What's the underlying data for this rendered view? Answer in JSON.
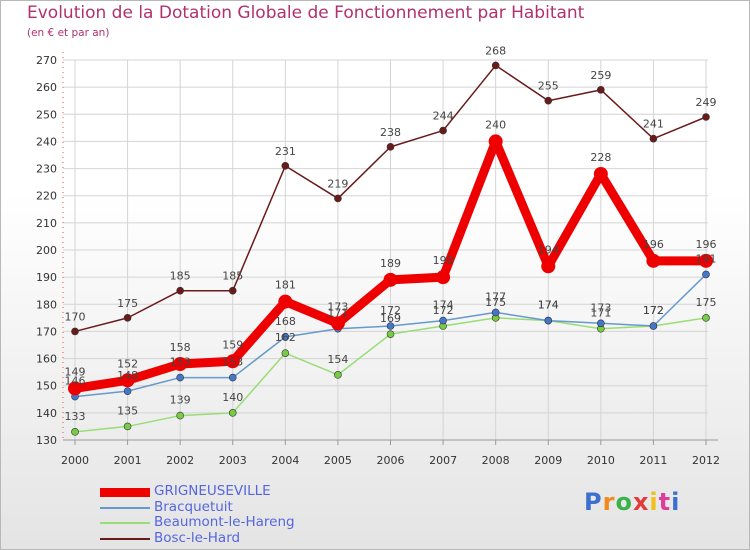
{
  "title": "Evolution de la Dotation Globale de Fonctionnement par Habitant",
  "subtitle": "(en € et par an)",
  "logo": {
    "letters": [
      "P",
      "r",
      "o",
      "x",
      "i",
      "t",
      "i"
    ],
    "colors": [
      "#3b6fd0",
      "#f08a1c",
      "#3bb34a",
      "#e03c3c",
      "#f0c01c",
      "#e03c9c",
      "#3b6fd0"
    ]
  },
  "chart_data": {
    "type": "line",
    "title": "Evolution de la Dotation Globale de Fonctionnement par Habitant",
    "ylabel": "(en € et par an)",
    "x": [
      "2000",
      "2001",
      "2002",
      "2003",
      "2004",
      "2005",
      "2006",
      "2007",
      "2008",
      "2009",
      "2010",
      "2011",
      "2012"
    ],
    "ylim": [
      130,
      270
    ],
    "yticks": [
      "130",
      "140",
      "150",
      "160",
      "170",
      "180",
      "190",
      "200",
      "210",
      "220",
      "230",
      "240",
      "250",
      "260",
      "270"
    ],
    "series": [
      {
        "name": "Bosc-le-Hard",
        "color": "#6b1a1a",
        "marker": "#6b1a1a",
        "values": [
          170,
          175,
          185,
          185,
          231,
          219,
          238,
          244,
          268,
          255,
          259,
          241,
          249
        ],
        "labels": [
          "170",
          "175",
          "185",
          "185",
          "231",
          "219",
          "238",
          "244",
          "268",
          "255",
          "259",
          "241",
          "249"
        ]
      },
      {
        "name": "Beaumont-le-Hareng",
        "color": "#99dd77",
        "marker": "#77cc44",
        "values": [
          133,
          135,
          139,
          140,
          162,
          154,
          169,
          172,
          175,
          174,
          171,
          172,
          175
        ],
        "labels": [
          "133",
          "135",
          "139",
          "140",
          "162",
          "154",
          "169",
          "172",
          "175",
          "174",
          "171",
          "172",
          "175"
        ]
      },
      {
        "name": "Bracquetuit",
        "color": "#6699cc",
        "marker": "#4477cc",
        "values": [
          146,
          148,
          153,
          153,
          168,
          171,
          172,
          174,
          177,
          174,
          173,
          172,
          191
        ],
        "labels": [
          "146",
          "148",
          "153",
          "153",
          "168",
          "171",
          "172",
          "174",
          "177",
          "174",
          "173",
          "172",
          "191"
        ]
      },
      {
        "name": "GRIGNEUSEVILLE",
        "color": "#ee0000",
        "marker": "#ee0000",
        "values": [
          149,
          152,
          158,
          159,
          181,
          173,
          189,
          190,
          240,
          194,
          228,
          196,
          196
        ],
        "labels": [
          "149",
          "152",
          "158",
          "159",
          "181",
          "173",
          "189",
          "190",
          "240",
          "194",
          "228",
          "196",
          "196"
        ]
      }
    ],
    "legend": [
      "GRIGNEUSEVILLE",
      "Bracquetuit",
      "Beaumont-le-Hareng",
      "Bosc-le-Hard"
    ],
    "legend_position": "bottom-left"
  }
}
